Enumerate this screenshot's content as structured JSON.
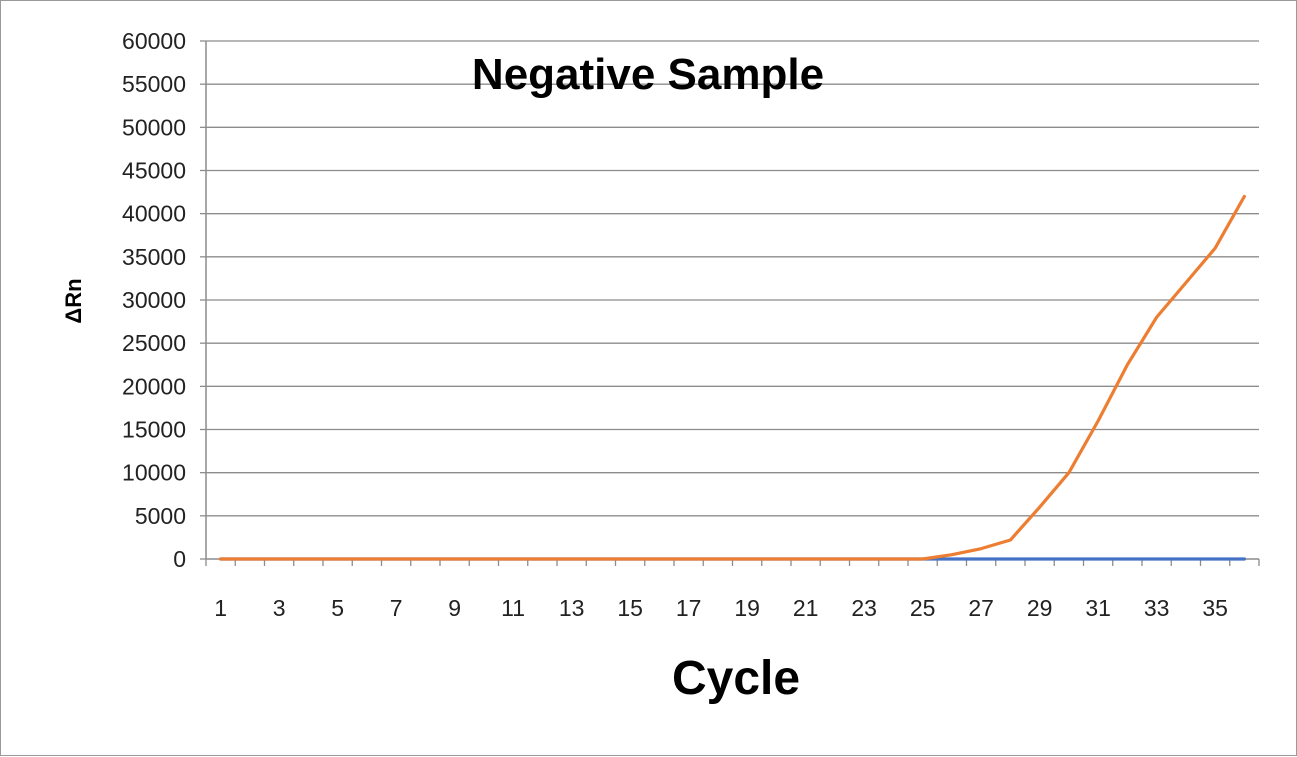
{
  "chart_data": {
    "type": "line",
    "title": "Negative Sample",
    "xlabel": "Cycle",
    "ylabel": "ΔRn",
    "x": [
      1,
      2,
      3,
      4,
      5,
      6,
      7,
      8,
      9,
      10,
      11,
      12,
      13,
      14,
      15,
      16,
      17,
      18,
      19,
      20,
      21,
      22,
      23,
      24,
      25,
      26,
      27,
      28,
      29,
      30,
      31,
      32,
      33,
      34,
      35,
      36
    ],
    "x_tick_labels": [
      "1",
      "3",
      "5",
      "7",
      "9",
      "11",
      "13",
      "15",
      "17",
      "19",
      "21",
      "23",
      "25",
      "27",
      "29",
      "31",
      "33",
      "35"
    ],
    "y_tick_labels": [
      "0",
      "5000",
      "10000",
      "15000",
      "20000",
      "25000",
      "30000",
      "35000",
      "40000",
      "45000",
      "50000",
      "55000",
      "60000"
    ],
    "ylim": [
      0,
      60000
    ],
    "grid": true,
    "legend": "none",
    "series": [
      {
        "color": "#4472c4",
        "values": [
          0,
          0,
          0,
          0,
          0,
          0,
          0,
          0,
          0,
          0,
          0,
          0,
          0,
          0,
          0,
          0,
          0,
          0,
          0,
          0,
          0,
          0,
          0,
          0,
          0,
          0,
          0,
          0,
          0,
          0,
          0,
          0,
          0,
          0,
          0,
          0
        ]
      },
      {
        "color": "#ed7d31",
        "values": [
          0,
          0,
          0,
          0,
          0,
          0,
          0,
          0,
          0,
          0,
          0,
          0,
          0,
          0,
          0,
          0,
          0,
          0,
          0,
          0,
          0,
          0,
          0,
          0,
          0,
          500,
          1200,
          2200,
          6000,
          10000,
          16000,
          22500,
          28000,
          32000,
          36000,
          42000
        ]
      }
    ]
  }
}
